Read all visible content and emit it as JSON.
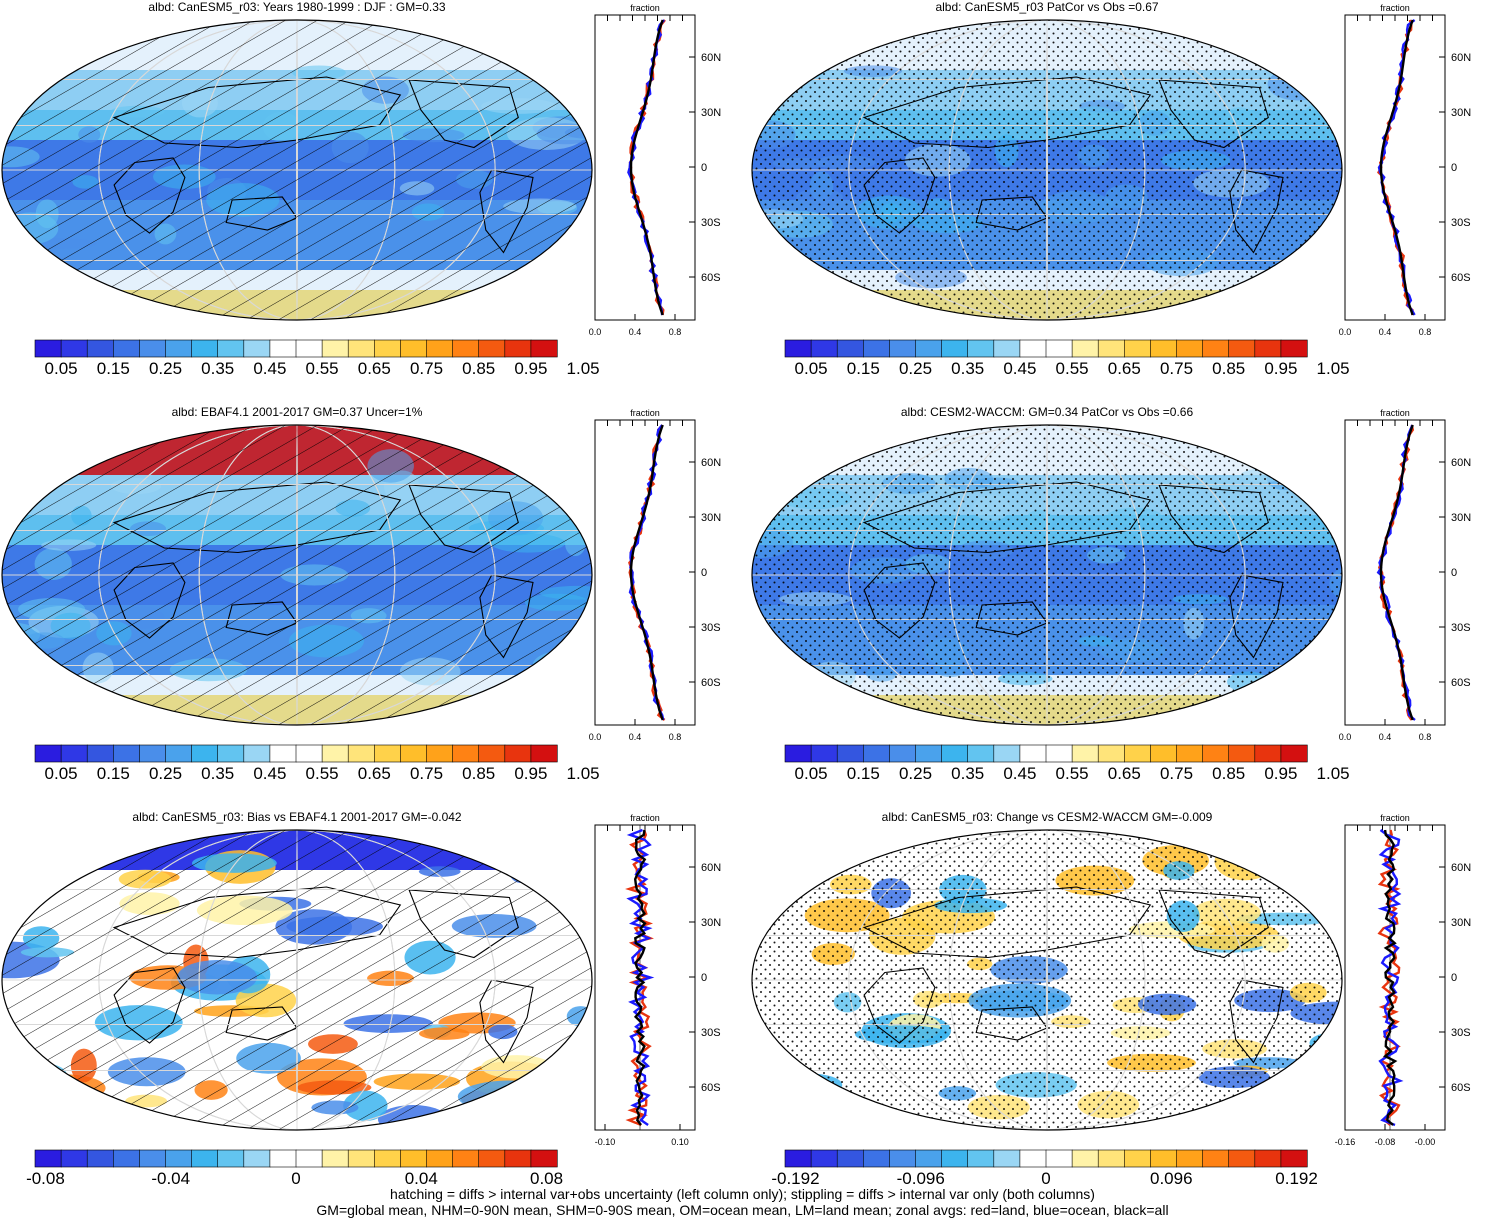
{
  "chart_data": [
    {
      "type": "heatmap",
      "title": "albd: CanESM5_r03: Years 1980-1999 : DJF : GM=0.33",
      "overlay": "hatching",
      "colorbar_labels": [
        "0.05",
        "0.15",
        "0.25",
        "0.35",
        "0.45",
        "0.55",
        "0.65",
        "0.75",
        "0.85",
        "0.95",
        "1.05"
      ],
      "profile": {
        "xlabel": "fraction",
        "xticks": [
          "0.0",
          "0.4",
          "0.8"
        ],
        "lat_ticks": [
          "60N",
          "30N",
          "0",
          "30S",
          "60S"
        ]
      }
    },
    {
      "type": "heatmap",
      "title": "albd: CanESM5_r03 PatCor vs Obs =0.67",
      "overlay": "stippling",
      "colorbar_labels": [
        "0.05",
        "0.15",
        "0.25",
        "0.35",
        "0.45",
        "0.55",
        "0.65",
        "0.75",
        "0.85",
        "0.95",
        "1.05"
      ],
      "profile": {
        "xlabel": "fraction",
        "xticks": [
          "0.0",
          "0.4",
          "0.8"
        ],
        "lat_ticks": [
          "60N",
          "30N",
          "0",
          "30S",
          "60S"
        ]
      }
    },
    {
      "type": "heatmap",
      "title": "albd: EBAF4.1 2001-2017 GM=0.37 Uncer=1%",
      "overlay": "hatching",
      "colorbar_labels": [
        "0.05",
        "0.15",
        "0.25",
        "0.35",
        "0.45",
        "0.55",
        "0.65",
        "0.75",
        "0.85",
        "0.95",
        "1.05"
      ],
      "profile": {
        "xlabel": "fraction",
        "xticks": [
          "0.0",
          "0.4",
          "0.8"
        ],
        "lat_ticks": [
          "60N",
          "30N",
          "0",
          "30S",
          "60S"
        ]
      }
    },
    {
      "type": "heatmap",
      "title": "albd: CESM2-WACCM: GM=0.34 PatCor vs Obs =0.66",
      "overlay": "stippling",
      "colorbar_labels": [
        "0.05",
        "0.15",
        "0.25",
        "0.35",
        "0.45",
        "0.55",
        "0.65",
        "0.75",
        "0.85",
        "0.95",
        "1.05"
      ],
      "profile": {
        "xlabel": "fraction",
        "xticks": [
          "0.0",
          "0.4",
          "0.8"
        ],
        "lat_ticks": [
          "60N",
          "30N",
          "0",
          "30S",
          "60S"
        ]
      }
    },
    {
      "type": "heatmap",
      "title": "albd: CanESM5_r03: Bias vs EBAF4.1 2001-2017 GM=-0.042",
      "overlay": "hatching",
      "colorbar_labels": [
        "-0.08",
        "-0.04",
        "0",
        "0.04",
        "0.08"
      ],
      "profile": {
        "xlabel": "fraction",
        "xticks": [
          "-0.10",
          "0.10"
        ],
        "lat_ticks": [
          "60N",
          "30N",
          "0",
          "30S",
          "60S"
        ]
      }
    },
    {
      "type": "heatmap",
      "title": "albd: CanESM5_r03: Change vs CESM2-WACCM GM=-0.009",
      "overlay": "stippling",
      "colorbar_labels": [
        "-0.192",
        "-0.096",
        "0",
        "0.096",
        "0.192"
      ],
      "profile": {
        "xlabel": "fraction",
        "xticks": [
          "-0.16",
          "-0.08",
          "-0.00"
        ],
        "lat_ticks": [
          "60N",
          "30N",
          "0",
          "30S",
          "60S"
        ]
      }
    }
  ],
  "colors": {
    "seq_scale": [
      "#2a1ce0",
      "#2f38e6",
      "#3456e0",
      "#3c72e6",
      "#4a8eea",
      "#4aa2ec",
      "#3cb4ee",
      "#62c4f0",
      "#9ad6f4",
      "#ffffff",
      "#ffffff",
      "#fff3a8",
      "#ffe47a",
      "#ffd24a",
      "#ffbe2a",
      "#ffa21a",
      "#ff8214",
      "#f45a10",
      "#e8340e",
      "#d41010"
    ],
    "div_scale": [
      "#2a1ce0",
      "#2f38e6",
      "#3456e0",
      "#3c72e6",
      "#4a8eea",
      "#4aa2ec",
      "#3cb4ee",
      "#62c4f0",
      "#9ad6f4",
      "#ffffff",
      "#ffffff",
      "#fff3a8",
      "#ffe47a",
      "#ffd24a",
      "#ffbe2a",
      "#ffa21a",
      "#ff8214",
      "#f45a10",
      "#e8340e",
      "#d41010"
    ],
    "land": "#e8340e",
    "ocean": "#1a1aff",
    "all": "#000000"
  },
  "legend": {
    "line1": "hatching = diffs > internal var+obs uncertainty (left column only); stippling = diffs > internal var only (both columns)",
    "line2": "GM=global mean, NHM=0-90N mean, SHM=0-90S mean, OM=ocean mean, LM=land mean; zonal avgs: red=land, blue=ocean, black=all"
  }
}
